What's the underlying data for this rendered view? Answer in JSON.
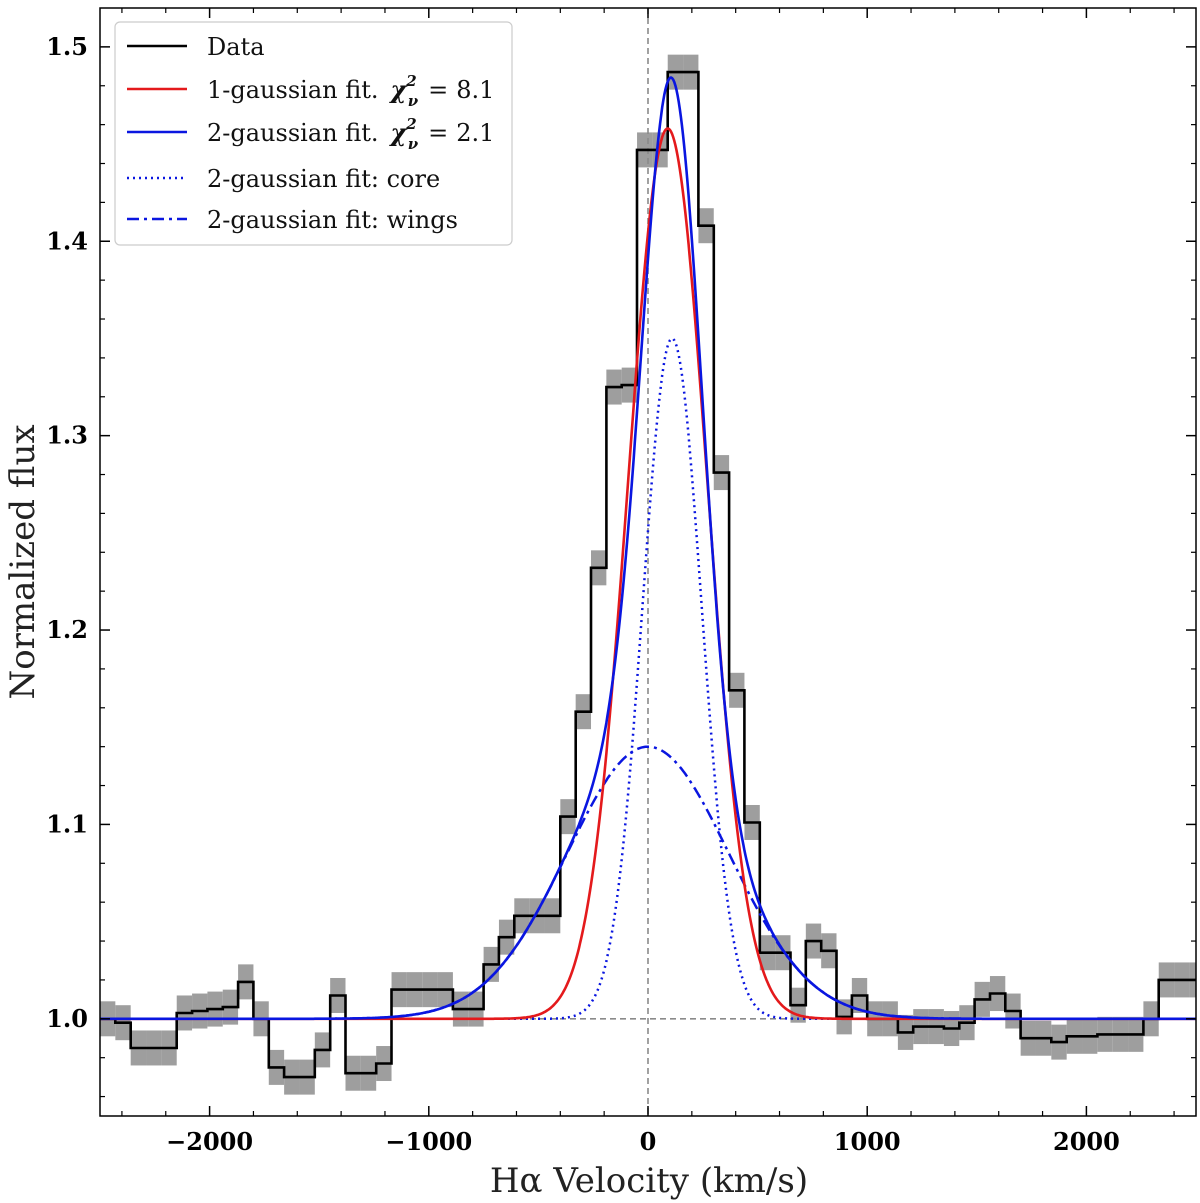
{
  "chart_data": {
    "type": "line",
    "xlabel": "Hα Velocity (km/s)",
    "ylabel": "Normalized flux",
    "xlim": [
      -2500,
      2500
    ],
    "ylim": [
      0.95,
      1.52
    ],
    "xticks": [
      -2000,
      -1000,
      0,
      1000,
      2000
    ],
    "xtick_labels": [
      "−2000",
      "−1000",
      "0",
      "1000",
      "2000"
    ],
    "yticks": [
      1.0,
      1.1,
      1.2,
      1.3,
      1.4,
      1.5
    ],
    "ytick_labels": [
      "1.0",
      "1.1",
      "1.2",
      "1.3",
      "1.4",
      "1.5"
    ],
    "reference_lines": {
      "x": 0,
      "y": 1.0
    },
    "data": {
      "name": "Data",
      "bin_width": 70,
      "x_start": -2500,
      "y": [
        1.0,
        0.998,
        0.985,
        0.985,
        0.985,
        1.003,
        1.004,
        1.005,
        1.006,
        1.019,
        1.0,
        0.975,
        0.97,
        0.97,
        0.984,
        1.012,
        0.972,
        0.972,
        0.977,
        1.015,
        1.015,
        1.015,
        1.015,
        1.005,
        1.005,
        1.028,
        1.042,
        1.053,
        1.053,
        1.053,
        1.104,
        1.158,
        1.232,
        1.325,
        1.326,
        1.447,
        1.447,
        1.487,
        1.487,
        1.408,
        1.281,
        1.169,
        1.101,
        1.034,
        1.034,
        1.007,
        1.04,
        1.035,
        1.001,
        1.012,
        1.0,
        1.0,
        0.993,
        0.996,
        0.996,
        0.995,
        0.998,
        1.01,
        1.013,
        1.004,
        0.99,
        0.99,
        0.988,
        0.991,
        0.991,
        0.992,
        0.992,
        0.992,
        1.0,
        1.02,
        1.02,
        1.02
      ],
      "error": 0.009
    },
    "series": [
      {
        "name": "1-gaussian fit.",
        "chi2": "8.1",
        "amplitude": 0.458,
        "center": 90,
        "sigma": 180,
        "offset": 0
      },
      {
        "name": "2-gaussian fit.",
        "chi2": "2.1",
        "components": [
          "core",
          "wings"
        ]
      },
      {
        "name": "2-gaussian fit: core",
        "amplitude": 0.35,
        "center": 110,
        "sigma": 135,
        "offset": 0
      },
      {
        "name": "2-gaussian fit: wings",
        "amplitude": 0.14,
        "center": 0,
        "sigma": 370,
        "offset": 0
      }
    ],
    "legend": {
      "position": "top-left",
      "chi_label": "χ",
      "chi_sub": "ν",
      "chi_sup": "2",
      "equals": "=",
      "entries": [
        "Data",
        "1-gaussian fit.",
        "2-gaussian fit.",
        "2-gaussian fit: core",
        "2-gaussian fit: wings"
      ]
    },
    "colors": {
      "data": "#000000",
      "error": "#9e9e9e",
      "one_gauss": "#e41a1c",
      "two_gauss": "#0a16e0",
      "reference": "#8a8a8a"
    }
  }
}
